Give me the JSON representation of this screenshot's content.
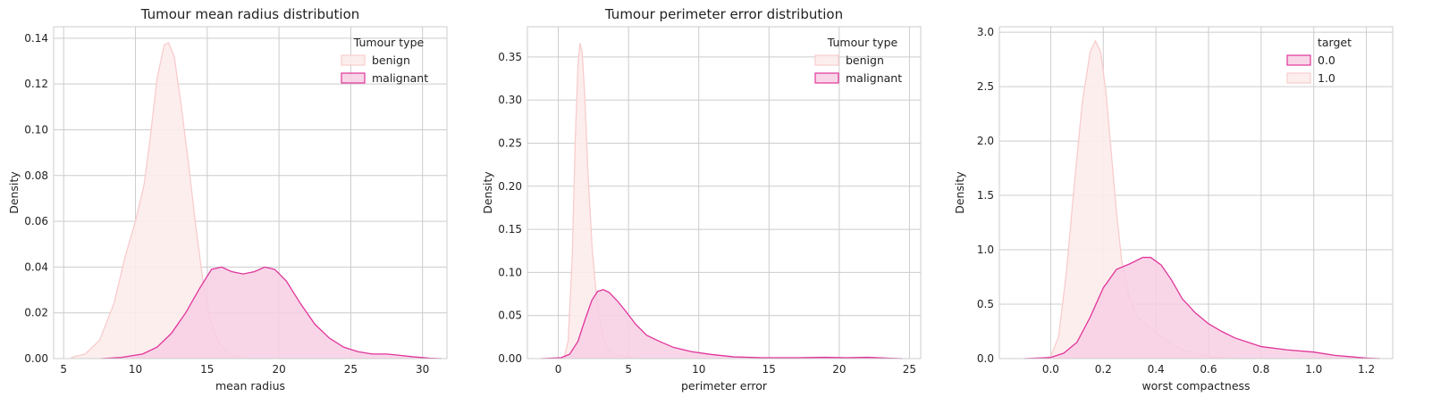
{
  "colors": {
    "benign_fill": "#fdecec",
    "benign_line": "#f8cccc",
    "malignant_fill": "#f7cfe4",
    "malignant_line": "#e0349a",
    "grid": "#cccccc",
    "frame": "#cccccc"
  },
  "chart_data": [
    {
      "type": "area",
      "title": "Tumour mean radius distribution",
      "xlabel": "mean radius",
      "ylabel": "Density",
      "xlim": [
        4.3,
        31.7
      ],
      "ylim": [
        0,
        0.145
      ],
      "xticks": [
        5,
        10,
        15,
        20,
        25,
        30
      ],
      "xtick_labels": [
        "5",
        "10",
        "15",
        "20",
        "25",
        "30"
      ],
      "yticks": [
        0,
        0.02,
        0.04,
        0.06,
        0.08,
        0.1,
        0.12,
        0.14
      ],
      "ytick_labels": [
        "0.00",
        "0.02",
        "0.04",
        "0.06",
        "0.08",
        "0.10",
        "0.12",
        "0.14"
      ],
      "grid": true,
      "legend": {
        "title": "Tumour type",
        "placement": "top-right",
        "entries": [
          {
            "label": "benign",
            "series": "benign"
          },
          {
            "label": "malignant",
            "series": "malignant"
          }
        ]
      },
      "series": [
        {
          "key": "benign",
          "x": [
            5.5,
            6.5,
            7.5,
            8.5,
            9.3,
            10,
            10.6,
            11,
            11.5,
            12,
            12.3,
            12.7,
            13.2,
            13.7,
            14.2,
            14.7,
            15.2,
            15.8,
            16.5,
            17.2,
            18
          ],
          "y": [
            0.0005,
            0.002,
            0.008,
            0.024,
            0.045,
            0.06,
            0.076,
            0.095,
            0.122,
            0.137,
            0.138,
            0.132,
            0.11,
            0.085,
            0.058,
            0.034,
            0.017,
            0.007,
            0.002,
            0.0005,
            0
          ]
        },
        {
          "key": "malignant",
          "x": [
            7.6,
            9,
            10.5,
            11.5,
            12.5,
            13.5,
            14.5,
            15.3,
            16,
            16.7,
            17.5,
            18.3,
            19,
            19.7,
            20.5,
            21.5,
            22.5,
            23.5,
            24.5,
            25.5,
            26.5,
            27.5,
            28.3,
            29.3,
            30.5,
            31.3
          ],
          "y": [
            0,
            0.0005,
            0.002,
            0.005,
            0.011,
            0.02,
            0.031,
            0.039,
            0.04,
            0.038,
            0.037,
            0.038,
            0.04,
            0.039,
            0.034,
            0.024,
            0.015,
            0.009,
            0.005,
            0.003,
            0.002,
            0.002,
            0.0015,
            0.0008,
            0.0002,
            0
          ]
        }
      ]
    },
    {
      "type": "area",
      "title": "Tumour perimeter error distribution",
      "xlabel": "perimeter error",
      "ylabel": "Density",
      "xlim": [
        -2.2,
        25.8
      ],
      "ylim": [
        0,
        0.385
      ],
      "xticks": [
        0,
        5,
        10,
        15,
        20,
        25
      ],
      "xtick_labels": [
        "0",
        "5",
        "10",
        "15",
        "20",
        "25"
      ],
      "yticks": [
        0,
        0.05,
        0.1,
        0.15,
        0.2,
        0.25,
        0.3,
        0.35
      ],
      "ytick_labels": [
        "0.00",
        "0.05",
        "0.10",
        "0.15",
        "0.20",
        "0.25",
        "0.30",
        "0.35"
      ],
      "grid": true,
      "legend": {
        "title": "Tumour type",
        "placement": "top-right",
        "entries": [
          {
            "label": "benign",
            "series": "benign"
          },
          {
            "label": "malignant",
            "series": "malignant"
          }
        ]
      },
      "series": [
        {
          "key": "benign",
          "x": [
            0.4,
            0.7,
            1.0,
            1.2,
            1.4,
            1.55,
            1.7,
            1.9,
            2.1,
            2.4,
            2.7,
            3.0,
            3.3,
            3.7,
            4.2,
            4.7,
            5.3,
            6.0
          ],
          "y": [
            0,
            0.02,
            0.12,
            0.25,
            0.34,
            0.366,
            0.355,
            0.3,
            0.22,
            0.13,
            0.075,
            0.04,
            0.02,
            0.008,
            0.004,
            0.003,
            0.001,
            0
          ]
        },
        {
          "key": "malignant",
          "x": [
            -1.2,
            0.2,
            0.8,
            1.4,
            1.9,
            2.4,
            2.8,
            3.2,
            3.6,
            4.2,
            4.8,
            5.5,
            6.3,
            7.2,
            8.2,
            9.5,
            10.8,
            12.5,
            14.5,
            17,
            19,
            20.5,
            22,
            23.5,
            24.5
          ],
          "y": [
            0,
            0.001,
            0.005,
            0.02,
            0.045,
            0.068,
            0.078,
            0.08,
            0.077,
            0.067,
            0.055,
            0.04,
            0.027,
            0.02,
            0.013,
            0.008,
            0.005,
            0.002,
            0.001,
            0.001,
            0.0015,
            0.001,
            0.0015,
            0.0005,
            0
          ]
        }
      ]
    },
    {
      "type": "area",
      "title": "",
      "xlabel": "worst compactness",
      "ylabel": "Density",
      "xlim": [
        -0.195,
        1.3
      ],
      "ylim": [
        0,
        3.05
      ],
      "xticks": [
        0.0,
        0.2,
        0.4,
        0.6,
        0.8,
        1.0,
        1.2
      ],
      "xtick_labels": [
        "0.0",
        "0.2",
        "0.4",
        "0.6",
        "0.8",
        "1.0",
        "1.2"
      ],
      "yticks": [
        0,
        0.5,
        1.0,
        1.5,
        2.0,
        2.5,
        3.0
      ],
      "ytick_labels": [
        "0.0",
        "0.5",
        "1.0",
        "1.5",
        "2.0",
        "2.5",
        "3.0"
      ],
      "grid": true,
      "legend": {
        "title": "target",
        "placement": "top-right",
        "entries": [
          {
            "label": "0.0",
            "series": "malignant"
          },
          {
            "label": "1.0",
            "series": "benign"
          }
        ]
      },
      "series": [
        {
          "key": "benign",
          "x": [
            -0.02,
            0.0,
            0.03,
            0.06,
            0.09,
            0.12,
            0.15,
            0.17,
            0.19,
            0.21,
            0.23,
            0.25,
            0.27,
            0.3,
            0.33,
            0.37,
            0.41,
            0.45,
            0.5,
            0.55,
            0.6,
            0.65,
            0.7
          ],
          "y": [
            0,
            0.02,
            0.2,
            0.8,
            1.6,
            2.35,
            2.82,
            2.92,
            2.82,
            2.45,
            1.9,
            1.35,
            0.9,
            0.55,
            0.38,
            0.3,
            0.22,
            0.15,
            0.08,
            0.05,
            0.02,
            0.01,
            0
          ]
        },
        {
          "key": "malignant",
          "x": [
            -0.1,
            0.0,
            0.05,
            0.1,
            0.15,
            0.2,
            0.25,
            0.3,
            0.35,
            0.38,
            0.42,
            0.46,
            0.5,
            0.55,
            0.6,
            0.65,
            0.7,
            0.8,
            0.9,
            1.0,
            1.08,
            1.15,
            1.2,
            1.25
          ],
          "y": [
            0,
            0.01,
            0.05,
            0.15,
            0.38,
            0.65,
            0.82,
            0.87,
            0.93,
            0.93,
            0.86,
            0.72,
            0.55,
            0.42,
            0.32,
            0.25,
            0.19,
            0.11,
            0.08,
            0.06,
            0.03,
            0.015,
            0.005,
            0
          ]
        }
      ]
    }
  ]
}
